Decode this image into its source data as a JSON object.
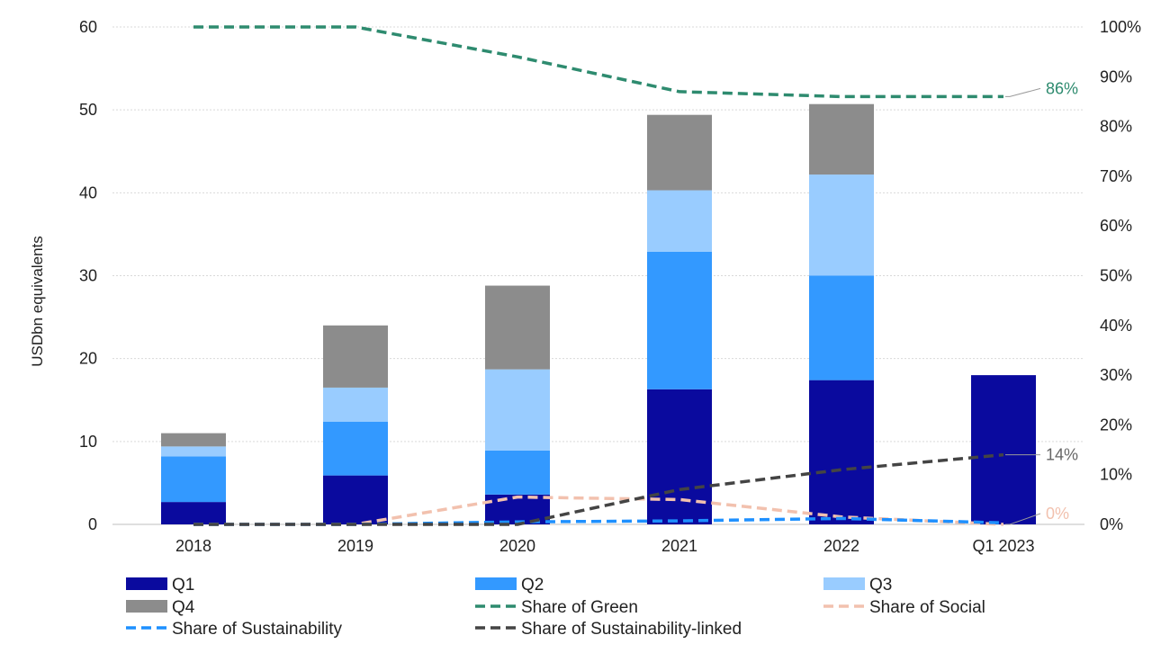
{
  "chart_data": {
    "type": "bar",
    "stacked": true,
    "categories": [
      "2018",
      "2019",
      "2020",
      "2021",
      "2022",
      "Q1 2023"
    ],
    "ylabel": "USDbn equivalents",
    "ylim": [
      0,
      60
    ],
    "yticks": [
      "0",
      "10",
      "20",
      "30",
      "40",
      "50",
      "60"
    ],
    "y2lim": [
      0,
      100
    ],
    "y2ticks": [
      "0%",
      "10%",
      "20%",
      "30%",
      "40%",
      "50%",
      "60%",
      "70%",
      "80%",
      "90%",
      "100%"
    ],
    "grid": true,
    "legend_position": "bottom",
    "bar_series": [
      {
        "name": "Q1",
        "color": "#0A0A9E",
        "values": [
          2.7,
          5.9,
          3.6,
          16.3,
          17.4,
          18.0
        ]
      },
      {
        "name": "Q2",
        "color": "#3399FF",
        "values": [
          5.5,
          6.5,
          5.3,
          16.6,
          12.6,
          0
        ]
      },
      {
        "name": "Q3",
        "color": "#99CCFF",
        "values": [
          1.2,
          4.1,
          9.8,
          7.4,
          12.2,
          0
        ]
      },
      {
        "name": "Q4",
        "color": "#8C8C8C",
        "values": [
          1.6,
          7.5,
          10.1,
          9.1,
          8.5,
          0
        ]
      }
    ],
    "line_series": [
      {
        "name": "Share of Green",
        "color": "#2E8B6F",
        "axis": "right",
        "values": [
          100,
          100,
          94,
          87,
          86,
          86
        ],
        "end_label": "86%"
      },
      {
        "name": "Share of Social",
        "color": "#F2C1AE",
        "axis": "right",
        "values": [
          0,
          0,
          5.5,
          5,
          1.5,
          0
        ],
        "end_label": "0%"
      },
      {
        "name": "Share of Sustainability",
        "color": "#1E90FF",
        "axis": "right",
        "values": [
          0,
          0,
          0.5,
          0.7,
          1.2,
          0.3
        ],
        "end_label": ""
      },
      {
        "name": "Share of Sustainability-linked",
        "color": "#444444",
        "axis": "right",
        "values": [
          0,
          0,
          0,
          7,
          11,
          14
        ],
        "end_label": "14%"
      }
    ],
    "legend": [
      {
        "name": "Q1",
        "kind": "box",
        "color": "#0A0A9E"
      },
      {
        "name": "Q2",
        "kind": "box",
        "color": "#3399FF"
      },
      {
        "name": "Q3",
        "kind": "box",
        "color": "#99CCFF"
      },
      {
        "name": "Q4",
        "kind": "box",
        "color": "#8C8C8C"
      },
      {
        "name": "Share of Green",
        "kind": "dash",
        "color": "#2E8B6F"
      },
      {
        "name": "Share of Social",
        "kind": "dash",
        "color": "#F2C1AE"
      },
      {
        "name": "Share of Sustainability",
        "kind": "dash",
        "color": "#1E90FF"
      },
      {
        "name": "Share of Sustainability-linked",
        "kind": "dash",
        "color": "#444444"
      }
    ]
  }
}
